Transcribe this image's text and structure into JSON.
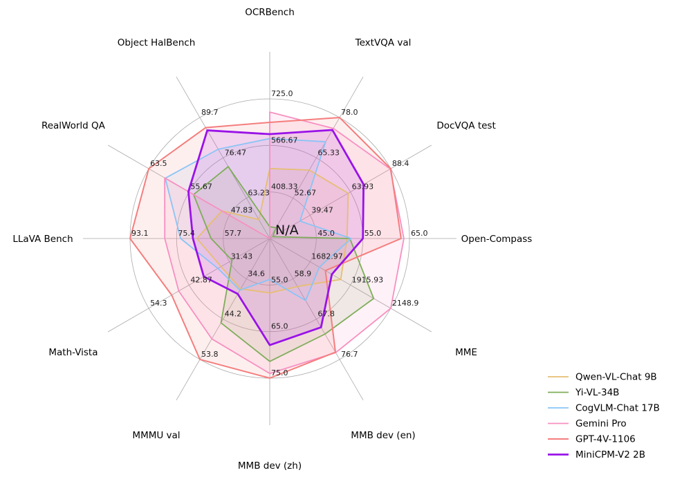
{
  "chart_data": {
    "type": "radar",
    "title": "",
    "center_label": "N/A",
    "grid": {
      "rings": 3,
      "color": "#a9a9a9",
      "show_spokes": true
    },
    "legend": {
      "position": "lower right",
      "frame": false
    },
    "axes": [
      {
        "label": "OCRBench",
        "min": 250,
        "max": 725,
        "tick_labels": [
          "408.33",
          "566.67",
          "725.0"
        ]
      },
      {
        "label": "TextVQA val",
        "min": 40,
        "max": 78,
        "tick_labels": [
          "52.67",
          "65.33",
          "78.0"
        ]
      },
      {
        "label": "DocVQA test",
        "min": 15,
        "max": 88.4,
        "tick_labels": [
          "39.47",
          "63.93",
          "88.4"
        ]
      },
      {
        "label": "Open-Compass",
        "min": 35,
        "max": 65,
        "tick_labels": [
          "45.0",
          "55.0",
          "65.0"
        ]
      },
      {
        "label": "MME",
        "min": 1450,
        "max": 2148.9,
        "tick_labels": [
          "1682.97",
          "1915.93",
          "2148.9"
        ]
      },
      {
        "label": "MMB dev (en)",
        "min": 50,
        "max": 76.7,
        "tick_labels": [
          "58.9",
          "67.8",
          "76.7"
        ]
      },
      {
        "label": "MMB dev (zh)",
        "min": 45,
        "max": 75,
        "tick_labels": [
          "55.0",
          "65.0",
          "75.0"
        ]
      },
      {
        "label": "MMMU val",
        "min": 25,
        "max": 53.8,
        "tick_labels": [
          "34.6",
          "44.2",
          "53.8"
        ]
      },
      {
        "label": "Math-Vista",
        "min": 20,
        "max": 54.3,
        "tick_labels": [
          "31.43",
          "42.87",
          "54.3"
        ]
      },
      {
        "label": "LLaVA Bench",
        "min": 40,
        "max": 93.1,
        "tick_labels": [
          "57.7",
          "75.4",
          "93.1"
        ]
      },
      {
        "label": "RealWorld QA",
        "min": 40,
        "max": 63.5,
        "tick_labels": [
          "47.83",
          "55.67",
          "63.5"
        ]
      },
      {
        "label": "Object HalBench",
        "min": 50,
        "max": 89.7,
        "tick_labels": [
          "63.23",
          "76.47",
          "89.7"
        ]
      }
    ],
    "series": [
      {
        "name": "Qwen-VL-Chat 9B",
        "color": "#e6be73",
        "line_width": 1.8,
        "values": [
          488,
          61.5,
          62.6,
          51.6,
          1860.0,
          60.6,
          56.7,
          37.0,
          33.8,
          67.7,
          49.3,
          56.2
        ]
      },
      {
        "name": "Yi-VL-34B",
        "color": "#7ead59",
        "line_width": 1.8,
        "values": [
          290,
          43.4,
          16.9,
          52.2,
          2050.2,
          71.1,
          71.4,
          45.1,
          30.7,
          62.3,
          54.8,
          73.6
        ]
      },
      {
        "name": "CogVLM-Chat 17B",
        "color": "#8ac4f5",
        "line_width": 1.8,
        "values": [
          590,
          70.4,
          33.3,
          52.5,
          1736.6,
          63.7,
          53.8,
          37.3,
          34.7,
          73.9,
          60.3,
          79.3
        ]
      },
      {
        "name": "Gemini Pro",
        "color": "#f78fc1",
        "line_width": 1.8,
        "values": [
          680,
          74.6,
          88.1,
          63.8,
          2148.9,
          75.2,
          74.0,
          48.9,
          45.8,
          79.9,
          60.4,
          null
        ]
      },
      {
        "name": "GPT-4V-1106",
        "color": "#f57d7d",
        "line_width": 2.0,
        "values": [
          645,
          78.0,
          88.4,
          63.2,
          1771.5,
          75.1,
          75.0,
          53.8,
          47.8,
          93.1,
          63.5,
          86.4
        ]
      },
      {
        "name": "MiniCPM-V2 2B",
        "color": "#9912e8",
        "line_width": 2.8,
        "values": [
          605,
          74.1,
          71.9,
          55.0,
          1808.6,
          69.6,
          67.9,
          38.2,
          38.7,
          69.2,
          55.8,
          85.5
        ]
      }
    ],
    "fill_opacity": 0.12,
    "text_color": "#1c1c1c"
  }
}
